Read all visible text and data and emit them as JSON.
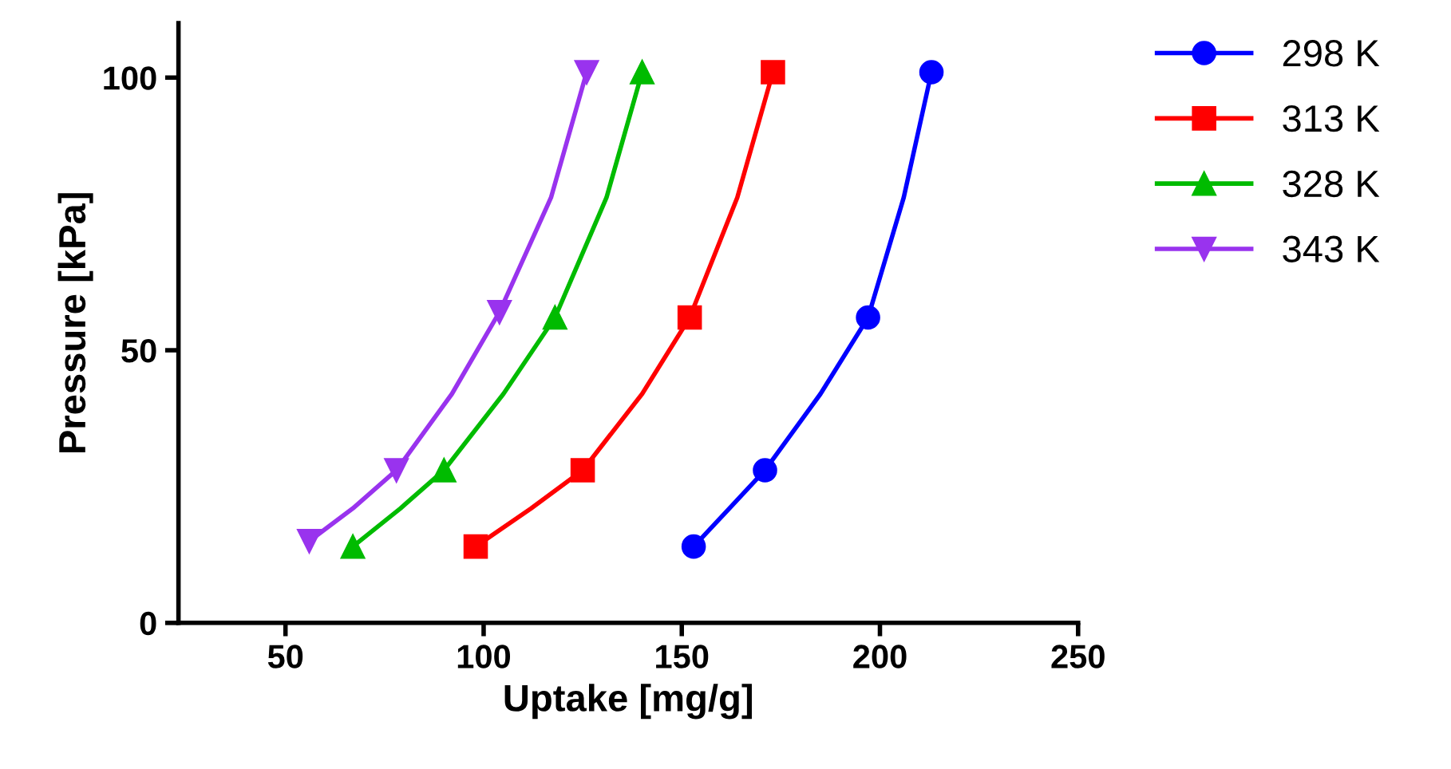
{
  "chart_data": {
    "type": "scatter",
    "xlabel": "Uptake [mg/g]",
    "ylabel": "Pressure [kPa]",
    "xlim": [
      23,
      250
    ],
    "xticks": [
      50,
      100,
      150,
      200,
      250
    ],
    "ylim": [
      0,
      110
    ],
    "yticks": [
      0,
      50,
      100
    ],
    "grid": false,
    "legend": "top right",
    "series": [
      {
        "name": "298 K",
        "color": "#0000ff",
        "marker": "circle",
        "x": [
          153,
          171,
          197,
          213
        ],
        "values": [
          14,
          28,
          56,
          101
        ]
      },
      {
        "name": "313 K",
        "color": "#ff0000",
        "marker": "square",
        "x": [
          98,
          125,
          152,
          173
        ],
        "values": [
          14,
          28,
          56,
          101
        ]
      },
      {
        "name": "328 K",
        "color": "#00bb00",
        "marker": "triangle",
        "x": [
          67,
          90,
          118,
          140
        ],
        "values": [
          14,
          28,
          56,
          101
        ]
      },
      {
        "name": "343 K",
        "color": "#9933ee",
        "marker": "triangle_down",
        "x": [
          56,
          78,
          104,
          126
        ],
        "values": [
          15,
          28,
          57,
          101
        ]
      },
      {
        "type": "line",
        "color": "#0000ff",
        "line_style": "solid",
        "x": [
          153,
          162,
          171,
          185,
          197,
          206,
          213
        ],
        "values": [
          14,
          21,
          28,
          42,
          56,
          78,
          101
        ]
      },
      {
        "type": "line",
        "color": "#ff0000",
        "line_style": "solid",
        "x": [
          98,
          112,
          125,
          140,
          152,
          164,
          173
        ],
        "values": [
          14,
          21,
          28,
          42,
          56,
          78,
          101
        ]
      },
      {
        "type": "line",
        "color": "#00bb00",
        "line_style": "solid",
        "x": [
          67,
          79,
          90,
          105,
          118,
          131,
          140
        ],
        "values": [
          14,
          21,
          28,
          42,
          56,
          78,
          101
        ]
      },
      {
        "type": "line",
        "color": "#9933ee",
        "line_style": "solid",
        "x": [
          56,
          67,
          78,
          92,
          104,
          117,
          126
        ],
        "values": [
          15,
          21,
          28,
          42,
          57,
          78,
          101
        ]
      }
    ]
  }
}
